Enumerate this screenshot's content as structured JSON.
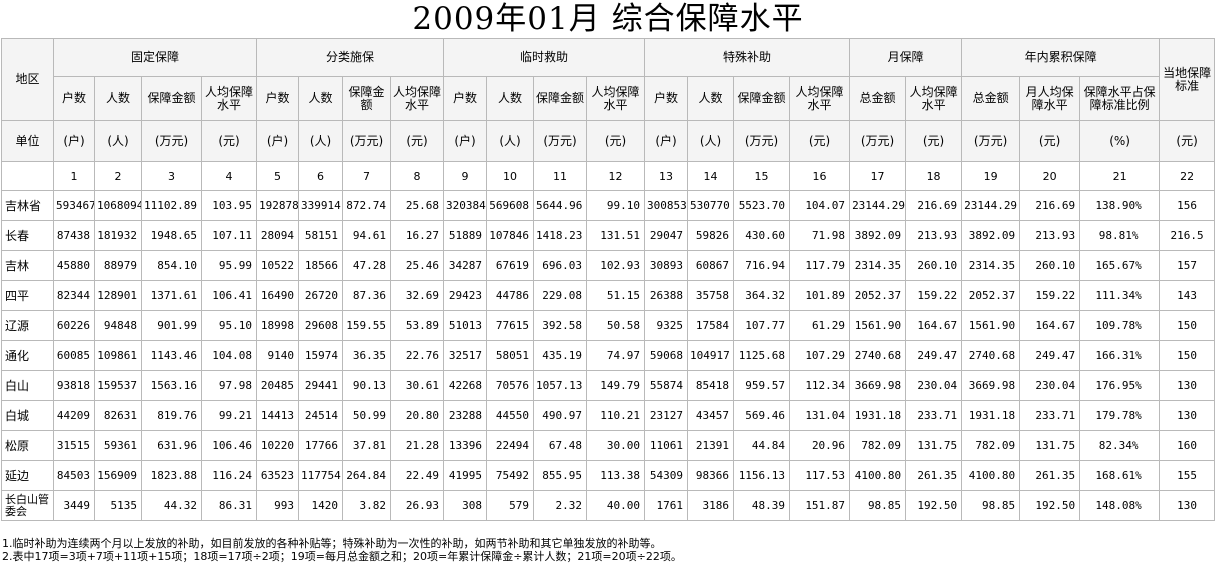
{
  "title": "2009年01月  综合保障水平",
  "headers": {
    "region": "地区",
    "unit": "单位",
    "groups": [
      "固定保障",
      "分类施保",
      "临时救助",
      "特殊补助",
      "月保障",
      "年内累积保障",
      "当地保障标准"
    ],
    "subheaders": [
      "户数",
      "人数",
      "保障金额",
      "人均保障水平",
      "户数",
      "人数",
      "保障金额",
      "人均保障水平",
      "户数",
      "人数",
      "保障金额",
      "人均保障水平",
      "户数",
      "人数",
      "保障金额",
      "人均保障水平",
      "总金额",
      "人均保障水平",
      "总金额",
      "月人均保障水平",
      "保障水平占保障标准比例"
    ],
    "units": [
      "(户)",
      "(人)",
      "(万元)",
      "(元)",
      "(户)",
      "(人)",
      "(万元)",
      "(元)",
      "(户)",
      "(人)",
      "(万元)",
      "(元)",
      "(户)",
      "(人)",
      "(万元)",
      "(元)",
      "(万元)",
      "(元)",
      "(万元)",
      "(元)",
      "(%)",
      "(元)"
    ],
    "indices": [
      "1",
      "2",
      "3",
      "4",
      "5",
      "6",
      "7",
      "8",
      "9",
      "10",
      "11",
      "12",
      "13",
      "14",
      "15",
      "16",
      "17",
      "18",
      "19",
      "20",
      "21",
      "22"
    ]
  },
  "rows": [
    {
      "region": "吉林省",
      "values": [
        "593467",
        "1068094",
        "11102.89",
        "103.95",
        "192878",
        "339914",
        "872.74",
        "25.68",
        "320384",
        "569608",
        "5644.96",
        "99.10",
        "300853",
        "530770",
        "5523.70",
        "104.07",
        "23144.29",
        "216.69",
        "23144.29",
        "216.69",
        "138.90%",
        "156"
      ]
    },
    {
      "region": "长春",
      "values": [
        "87438",
        "181932",
        "1948.65",
        "107.11",
        "28094",
        "58151",
        "94.61",
        "16.27",
        "51889",
        "107846",
        "1418.23",
        "131.51",
        "29047",
        "59826",
        "430.60",
        "71.98",
        "3892.09",
        "213.93",
        "3892.09",
        "213.93",
        "98.81%",
        "216.5"
      ]
    },
    {
      "region": "吉林",
      "values": [
        "45880",
        "88979",
        "854.10",
        "95.99",
        "10522",
        "18566",
        "47.28",
        "25.46",
        "34287",
        "67619",
        "696.03",
        "102.93",
        "30893",
        "60867",
        "716.94",
        "117.79",
        "2314.35",
        "260.10",
        "2314.35",
        "260.10",
        "165.67%",
        "157"
      ]
    },
    {
      "region": "四平",
      "values": [
        "82344",
        "128901",
        "1371.61",
        "106.41",
        "16490",
        "26720",
        "87.36",
        "32.69",
        "29423",
        "44786",
        "229.08",
        "51.15",
        "26388",
        "35758",
        "364.32",
        "101.89",
        "2052.37",
        "159.22",
        "2052.37",
        "159.22",
        "111.34%",
        "143"
      ]
    },
    {
      "region": "辽源",
      "values": [
        "60226",
        "94848",
        "901.99",
        "95.10",
        "18998",
        "29608",
        "159.55",
        "53.89",
        "51013",
        "77615",
        "392.58",
        "50.58",
        "9325",
        "17584",
        "107.77",
        "61.29",
        "1561.90",
        "164.67",
        "1561.90",
        "164.67",
        "109.78%",
        "150"
      ]
    },
    {
      "region": "通化",
      "values": [
        "60085",
        "109861",
        "1143.46",
        "104.08",
        "9140",
        "15974",
        "36.35",
        "22.76",
        "32517",
        "58051",
        "435.19",
        "74.97",
        "59068",
        "104917",
        "1125.68",
        "107.29",
        "2740.68",
        "249.47",
        "2740.68",
        "249.47",
        "166.31%",
        "150"
      ]
    },
    {
      "region": "白山",
      "values": [
        "93818",
        "159537",
        "1563.16",
        "97.98",
        "20485",
        "29441",
        "90.13",
        "30.61",
        "42268",
        "70576",
        "1057.13",
        "149.79",
        "55874",
        "85418",
        "959.57",
        "112.34",
        "3669.98",
        "230.04",
        "3669.98",
        "230.04",
        "176.95%",
        "130"
      ]
    },
    {
      "region": "白城",
      "values": [
        "44209",
        "82631",
        "819.76",
        "99.21",
        "14413",
        "24514",
        "50.99",
        "20.80",
        "23288",
        "44550",
        "490.97",
        "110.21",
        "23127",
        "43457",
        "569.46",
        "131.04",
        "1931.18",
        "233.71",
        "1931.18",
        "233.71",
        "179.78%",
        "130"
      ]
    },
    {
      "region": "松原",
      "values": [
        "31515",
        "59361",
        "631.96",
        "106.46",
        "10220",
        "17766",
        "37.81",
        "21.28",
        "13396",
        "22494",
        "67.48",
        "30.00",
        "11061",
        "21391",
        "44.84",
        "20.96",
        "782.09",
        "131.75",
        "782.09",
        "131.75",
        "82.34%",
        "160"
      ]
    },
    {
      "region": "延边",
      "values": [
        "84503",
        "156909",
        "1823.88",
        "116.24",
        "63523",
        "117754",
        "264.84",
        "22.49",
        "41995",
        "75492",
        "855.95",
        "113.38",
        "54309",
        "98366",
        "1156.13",
        "117.53",
        "4100.80",
        "261.35",
        "4100.80",
        "261.35",
        "168.61%",
        "155"
      ]
    },
    {
      "region": "长白山管委会",
      "values": [
        "3449",
        "5135",
        "44.32",
        "86.31",
        "993",
        "1420",
        "3.82",
        "26.93",
        "308",
        "579",
        "2.32",
        "40.00",
        "1761",
        "3186",
        "48.39",
        "151.87",
        "98.85",
        "192.50",
        "98.85",
        "192.50",
        "148.08%",
        "130"
      ]
    }
  ],
  "notes": [
    "1.临时补助为连续两个月以上发放的补助，如目前发放的各种补贴等；特殊补助为一次性的补助，如两节补助和其它单独发放的补助等。",
    "2.表中17项=3项+7项+11项+15项；18项=17项÷2项；19项=每月总金额之和；20项=年累计保障金÷累计人数；21项=20项÷22项。"
  ]
}
